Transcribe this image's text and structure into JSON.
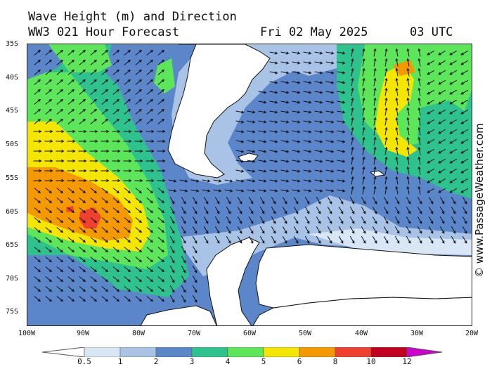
{
  "header": {
    "title": "Wave Height (m) and Direction",
    "subtitle": "WW3 021 Hour Forecast",
    "date": "Fri 02 May 2025",
    "time": "03 UTC"
  },
  "axes": {
    "lat_labels": [
      "35S",
      "40S",
      "45S",
      "50S",
      "55S",
      "60S",
      "65S",
      "70S",
      "75S"
    ],
    "lon_labels": [
      "100W",
      "90W",
      "80W",
      "70W",
      "60W",
      "50W",
      "40W",
      "30W",
      "20W"
    ],
    "lat_range": [
      -35,
      -77
    ],
    "lon_range": [
      -100,
      -20
    ]
  },
  "copyright": "© www.PassageWeather.com",
  "legend": {
    "labels": [
      "0.5",
      "1",
      "2",
      "3",
      "4",
      "5",
      "6",
      "8",
      "10",
      "12"
    ],
    "colors": [
      "#ffffff",
      "#d8e6f5",
      "#a9c3e6",
      "#5b86c9",
      "#2ec28f",
      "#5ee65a",
      "#f4e600",
      "#f49a00",
      "#f04030",
      "#c0001c",
      "#d000d0"
    ]
  },
  "map": {
    "land_color": "#ffffff",
    "coast_color": "#111111",
    "arrow_color": "#111111"
  }
}
